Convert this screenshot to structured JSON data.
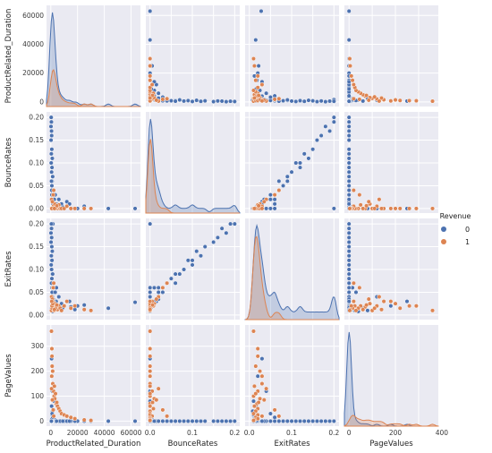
{
  "chart_data": {
    "type": "scatter",
    "variables": [
      "ProductRelated_Duration",
      "BounceRates",
      "ExitRates",
      "PageValues"
    ],
    "axis_labels": {
      "x": [
        "ProductRelated_Duration",
        "BounceRates",
        "ExitRates",
        "PageValues"
      ],
      "y": [
        "ProductRelated_Duration",
        "BounceRates",
        "ExitRates",
        "PageValues"
      ]
    },
    "ranges": {
      "ProductRelated_Duration": [
        -3200,
        67000
      ],
      "BounceRates": [
        -0.01,
        0.212
      ],
      "ExitRates": [
        -0.01,
        0.212
      ],
      "PageValues": [
        -20,
        385
      ]
    },
    "ticks": {
      "ProductRelated_Duration": {
        "values": [
          0,
          20000,
          40000,
          60000
        ],
        "labels": [
          "0",
          "20000",
          "40000",
          "60000"
        ]
      },
      "BounceRates": {
        "values": [
          0,
          0.05,
          0.1,
          0.15,
          0.2
        ],
        "labels": [
          "0.00",
          "0.05",
          "0.10",
          "0.15",
          "0.20"
        ],
        "x_labels": [
          "0.0",
          "",
          "0.1",
          "",
          "0.2"
        ]
      },
      "ExitRates": {
        "values": [
          0,
          0.05,
          0.1,
          0.15,
          0.2
        ],
        "labels": [
          "0.00",
          "0.05",
          "0.10",
          "0.15",
          "0.20"
        ],
        "x_labels": [
          "0.0",
          "",
          "0.1",
          "",
          "0.2"
        ]
      },
      "PageValues": {
        "values": [
          0,
          100,
          200,
          300,
          400
        ],
        "labels": [
          "0",
          "100",
          "200",
          "300",
          ""
        ],
        "x_labels": [
          "0",
          "",
          "200",
          "",
          "400"
        ]
      }
    },
    "hue": {
      "title": "Revenue",
      "levels": [
        "0",
        "1"
      ],
      "colors": [
        "#4c72b0",
        "#dd8452"
      ]
    },
    "diagonal_kind": "kde",
    "grid": true,
    "legend_position": "right",
    "series": [
      {
        "name": "0",
        "color": "#4c72b0",
        "points": [
          [
            120,
            0.2,
            0.2,
            0
          ],
          [
            300,
            0.2,
            0.2,
            0
          ],
          [
            500,
            0.1,
            0.12,
            0
          ],
          [
            800,
            0.05,
            0.08,
            0
          ],
          [
            1200,
            0.02,
            0.04,
            0
          ],
          [
            1500,
            0.01,
            0.03,
            0
          ],
          [
            2000,
            0.02,
            0.05,
            0
          ],
          [
            2500,
            0.0,
            0.02,
            0
          ],
          [
            3000,
            0.005,
            0.02,
            5
          ],
          [
            4000,
            0.01,
            0.03,
            0
          ],
          [
            5000,
            0.0,
            0.015,
            0
          ],
          [
            6000,
            0.02,
            0.04,
            0
          ],
          [
            8000,
            0.01,
            0.025,
            0
          ],
          [
            10000,
            0.0,
            0.02,
            0
          ],
          [
            12000,
            0.015,
            0.03,
            0
          ],
          [
            15000,
            0.0,
            0.018,
            0
          ],
          [
            20000,
            0.0,
            0.02,
            0
          ],
          [
            25000,
            0.005,
            0.022,
            0
          ],
          [
            43000,
            0.0,
            0.015,
            0
          ],
          [
            63000,
            0.0,
            0.028,
            0
          ],
          [
            800,
            0.03,
            0.06,
            0
          ],
          [
            1000,
            0.06,
            0.09,
            0
          ],
          [
            600,
            0.08,
            0.1,
            0
          ],
          [
            400,
            0.12,
            0.13,
            0
          ],
          [
            200,
            0.15,
            0.16,
            0
          ],
          [
            150,
            0.18,
            0.18,
            0
          ],
          [
            700,
            0.04,
            0.07,
            0
          ],
          [
            900,
            0.0,
            0.012,
            10
          ],
          [
            1100,
            0.0,
            0.01,
            25
          ],
          [
            1300,
            0.0,
            0.008,
            40
          ],
          [
            600,
            0.0,
            0.015,
            60
          ],
          [
            2000,
            0.0,
            0.02,
            0
          ],
          [
            3500,
            0.0,
            0.02,
            0
          ],
          [
            1800,
            0.02,
            0.035,
            0
          ],
          [
            2200,
            0.01,
            0.03,
            0
          ],
          [
            4500,
            0.005,
            0.018,
            0
          ],
          [
            7000,
            0.0,
            0.014,
            0
          ],
          [
            9000,
            0.003,
            0.016,
            0
          ],
          [
            300,
            0.1,
            0.11,
            0
          ],
          [
            500,
            0.06,
            0.07,
            0
          ],
          [
            1600,
            0.0,
            0.2,
            0
          ],
          [
            14000,
            0.01,
            0.03,
            0
          ],
          [
            18000,
            0.0,
            0.012,
            0
          ],
          [
            30000,
            0.0,
            0.01,
            0
          ],
          [
            600,
            0.0,
            0.03,
            250
          ],
          [
            900,
            0.0,
            0.02,
            180
          ],
          [
            1200,
            0.0,
            0.04,
            120
          ],
          [
            2500,
            0.0,
            0.01,
            80
          ],
          [
            1000,
            0.0,
            0.05,
            30
          ],
          [
            1500,
            0.0,
            0.06,
            15
          ],
          [
            2600,
            0.02,
            0.06,
            0
          ],
          [
            3300,
            0.03,
            0.05,
            0
          ],
          [
            4200,
            0.01,
            0.06,
            0
          ],
          [
            1400,
            0.07,
            0.09,
            0
          ],
          [
            900,
            0.09,
            0.12,
            0
          ],
          [
            1100,
            0.11,
            0.14,
            0
          ],
          [
            750,
            0.13,
            0.15,
            0
          ],
          [
            650,
            0.16,
            0.17,
            0
          ],
          [
            550,
            0.17,
            0.19,
            0
          ],
          [
            450,
            0.19,
            0.2,
            0
          ]
        ]
      },
      {
        "name": "1",
        "color": "#dd8452",
        "points": [
          [
            500,
            0.0,
            0.01,
            360
          ],
          [
            800,
            0.0,
            0.02,
            290
          ],
          [
            1000,
            0.0,
            0.015,
            220
          ],
          [
            1500,
            0.0,
            0.03,
            150
          ],
          [
            2000,
            0.005,
            0.02,
            120
          ],
          [
            2500,
            0.0,
            0.01,
            100
          ],
          [
            3000,
            0.01,
            0.025,
            90
          ],
          [
            4000,
            0.0,
            0.018,
            70
          ],
          [
            5000,
            0.0,
            0.012,
            60
          ],
          [
            6000,
            0.008,
            0.02,
            50
          ],
          [
            7000,
            0.0,
            0.015,
            40
          ],
          [
            8000,
            0.0,
            0.01,
            30
          ],
          [
            10000,
            0.0,
            0.02,
            25
          ],
          [
            12000,
            0.005,
            0.03,
            20
          ],
          [
            15000,
            0.0,
            0.015,
            15
          ],
          [
            18000,
            0.0,
            0.02,
            10
          ],
          [
            25000,
            0.0,
            0.012,
            5
          ],
          [
            30000,
            0.0,
            0.01,
            3
          ],
          [
            600,
            0.02,
            0.04,
            130
          ],
          [
            1200,
            0.015,
            0.035,
            85
          ],
          [
            1800,
            0.03,
            0.06,
            45
          ],
          [
            2200,
            0.04,
            0.07,
            20
          ],
          [
            900,
            0.0,
            0.02,
            260
          ],
          [
            1400,
            0.0,
            0.025,
            200
          ],
          [
            3500,
            0.0,
            0.015,
            110
          ],
          [
            4500,
            0.006,
            0.022,
            75
          ],
          [
            700,
            0.0,
            0.03,
            180
          ],
          [
            2700,
            0.0,
            0.012,
            140
          ]
        ]
      }
    ]
  }
}
